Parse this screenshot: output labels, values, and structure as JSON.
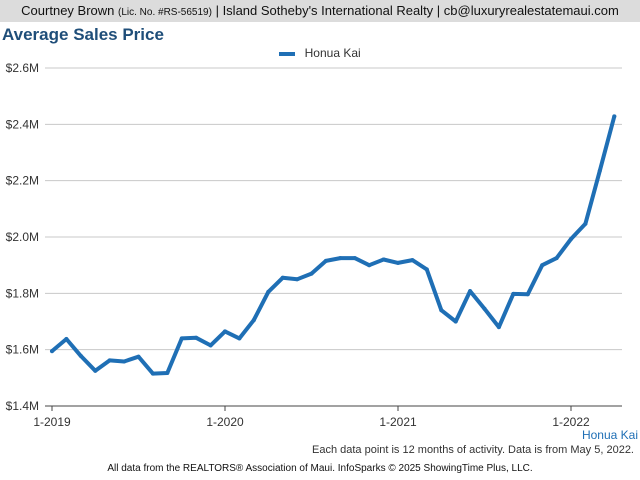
{
  "header": {
    "name": "Courtney Brown",
    "license": "(Lic. No. #RS-56519)",
    "rest": "| Island Sotheby's International Realty | cb@luxuryrealestatemaui.com"
  },
  "chart_data": {
    "type": "line",
    "title": "Average Sales Price",
    "xlabel": "",
    "ylabel": "",
    "y_tick_labels": [
      "$1.4M",
      "$1.6M",
      "$1.8M",
      "$2.0M",
      "$2.2M",
      "$2.4M",
      "$2.6M"
    ],
    "x_tick_labels": [
      "1-2019",
      "1-2020",
      "1-2021",
      "1-2022"
    ],
    "ylim": [
      1400000,
      2600000
    ],
    "grid": true,
    "legend_position": "top-center",
    "x": [
      "2019-01",
      "2019-02",
      "2019-03",
      "2019-04",
      "2019-05",
      "2019-06",
      "2019-07",
      "2019-08",
      "2019-09",
      "2019-10",
      "2019-11",
      "2019-12",
      "2020-01",
      "2020-02",
      "2020-03",
      "2020-04",
      "2020-05",
      "2020-06",
      "2020-07",
      "2020-08",
      "2020-09",
      "2020-10",
      "2020-11",
      "2020-12",
      "2021-01",
      "2021-02",
      "2021-03",
      "2021-04",
      "2021-05",
      "2021-06",
      "2021-07",
      "2021-08",
      "2021-09",
      "2021-10",
      "2021-11",
      "2021-12",
      "2022-01",
      "2022-02",
      "2022-03",
      "2022-04"
    ],
    "series": [
      {
        "name": "Honua Kai",
        "color": "#1f6fb5",
        "values": [
          1595000,
          1638000,
          1578000,
          1525000,
          1562000,
          1558000,
          1575000,
          1515000,
          1517000,
          1640000,
          1642000,
          1615000,
          1665000,
          1640000,
          1705000,
          1805000,
          1855000,
          1850000,
          1870000,
          1915000,
          1925000,
          1925000,
          1900000,
          1920000,
          1908000,
          1918000,
          1885000,
          1740000,
          1700000,
          1808000,
          1745000,
          1680000,
          1798000,
          1797000,
          1900000,
          1925000,
          1993000,
          2047000,
          2235000,
          2428000
        ]
      }
    ],
    "series_end_label": "Honua Kai"
  },
  "footer": {
    "note": "Each data point is 12 months of activity. Data is from May 5, 2022.",
    "credit": "All data from the REALTORS® Association of Maui. InfoSparks © 2025 ShowingTime Plus, LLC."
  }
}
